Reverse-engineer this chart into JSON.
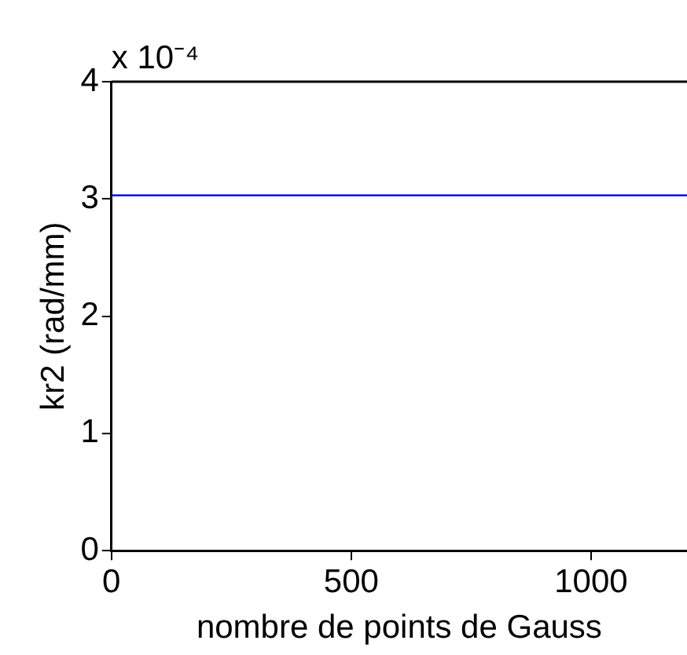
{
  "chart_data": {
    "type": "line",
    "xlabel": "nombre de points de Gauss",
    "ylabel": "kr2 (rad/mm)",
    "annotations": [
      "x 10⁻⁴"
    ],
    "xlim": [
      0,
      1200
    ],
    "xticks": [
      0,
      500,
      1000
    ],
    "ylim": [
      0,
      4
    ],
    "yticks": [
      0,
      1,
      2,
      3,
      4
    ],
    "grid": false,
    "legend": false,
    "series": [
      {
        "color": "#0000ff",
        "x": [
          0,
          1200
        ],
        "values": [
          3.03,
          3.03
        ]
      }
    ]
  }
}
